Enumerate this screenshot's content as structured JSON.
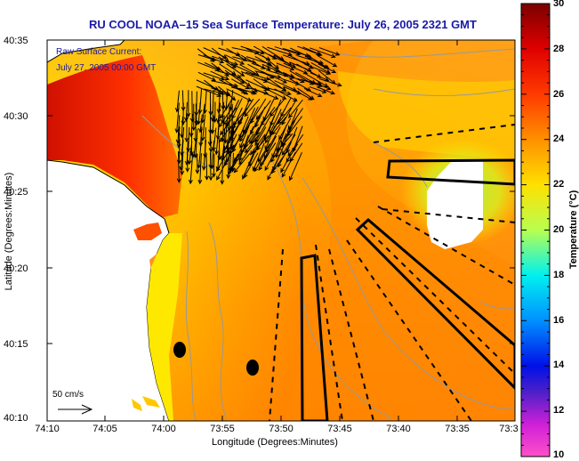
{
  "title": "RU COOL  NOAA–15  Sea Surface Temperature:  July 26, 2005 2321 GMT",
  "current_legend": {
    "line1": "Raw Surface Current:",
    "line2": "July 27, 2005 00:00 GMT"
  },
  "scale_arrow_label": "50 cm/s",
  "axes": {
    "xlabel": "Longitude (Degrees:Minutes)",
    "ylabel": "Latitude (Degrees:Minutes)",
    "xticks": [
      "74:10",
      "74:05",
      "74:00",
      "73:55",
      "73:50",
      "73:45",
      "73:40",
      "73:35",
      "73:3"
    ],
    "yticks": [
      "40:35",
      "40:30",
      "40:25",
      "40:20",
      "40:15",
      "40:10"
    ]
  },
  "colorbar": {
    "label": "Temperature (°C)",
    "ticks": [
      "30",
      "28",
      "26",
      "24",
      "22",
      "20",
      "18",
      "16",
      "14",
      "12",
      "10"
    ],
    "range": [
      10,
      30
    ]
  },
  "colors": {
    "title_text": "#1a1aa8",
    "warm_max": "#8b0000",
    "cool_min": "#ff33cc"
  },
  "markers": {
    "dot_count": 2,
    "sampling_boxes": 3,
    "dashed_lines": 8
  }
}
